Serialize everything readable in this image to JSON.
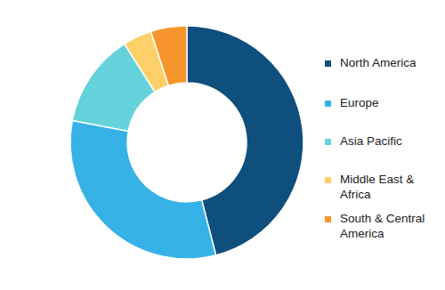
{
  "chart_data": {
    "type": "pie",
    "categories": [
      "North America",
      "Europe",
      "Asia Pacific",
      "Middle East & Africa",
      "South & Central America"
    ],
    "values": [
      46,
      32,
      13,
      4,
      5
    ],
    "colors": [
      "#0e4f7d",
      "#36b2e6",
      "#65d2db",
      "#fdd06a",
      "#f6952c"
    ],
    "legend": "right"
  }
}
